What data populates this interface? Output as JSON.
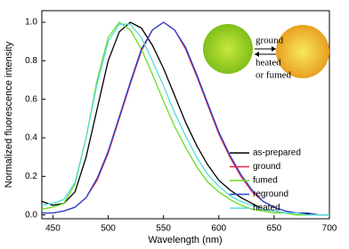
{
  "chart_data": {
    "type": "line",
    "x_label": "Wavelength (nm)",
    "y_label": "Normalized fluorescence intensity",
    "annotations": [
      "ground",
      "heated",
      "or fumed"
    ],
    "x": [
      440,
      450,
      460,
      470,
      480,
      490,
      500,
      510,
      520,
      530,
      540,
      550,
      560,
      570,
      580,
      590,
      600,
      610,
      620,
      630,
      640,
      650,
      660,
      670,
      680,
      690,
      700
    ],
    "series": [
      {
        "name": "as-prepared",
        "color": "#000000",
        "values": [
          0.07,
          0.05,
          0.06,
          0.12,
          0.3,
          0.55,
          0.8,
          0.95,
          1.0,
          0.97,
          0.88,
          0.76,
          0.62,
          0.48,
          0.36,
          0.26,
          0.18,
          0.13,
          0.09,
          0.06,
          0.03,
          0.02,
          0.01,
          0.01,
          0.005,
          0,
          0
        ]
      },
      {
        "name": "ground",
        "color": "#e8294a",
        "values": [
          0.01,
          0.01,
          0.02,
          0.04,
          0.09,
          0.18,
          0.32,
          0.5,
          0.68,
          0.85,
          0.96,
          1.0,
          0.96,
          0.86,
          0.72,
          0.57,
          0.42,
          0.3,
          0.2,
          0.12,
          0.07,
          0.04,
          0.02,
          0.01,
          0.01,
          0,
          0
        ]
      },
      {
        "name": "fumed",
        "color": "#66dd22",
        "values": [
          0.03,
          0.04,
          0.06,
          0.16,
          0.4,
          0.7,
          0.92,
          1.0,
          0.96,
          0.86,
          0.73,
          0.59,
          0.46,
          0.35,
          0.25,
          0.17,
          0.12,
          0.08,
          0.05,
          0.03,
          0.02,
          0.01,
          0.01,
          0,
          0,
          0,
          0
        ]
      },
      {
        "name": "reground",
        "color": "#2244cc",
        "values": [
          0.01,
          0.01,
          0.02,
          0.04,
          0.09,
          0.19,
          0.33,
          0.51,
          0.69,
          0.86,
          0.96,
          1.0,
          0.96,
          0.87,
          0.73,
          0.58,
          0.43,
          0.31,
          0.21,
          0.13,
          0.07,
          0.04,
          0.02,
          0.01,
          0.01,
          0,
          0
        ]
      },
      {
        "name": "heated",
        "color": "#55dddd",
        "values": [
          0.05,
          0.06,
          0.08,
          0.17,
          0.4,
          0.68,
          0.9,
          0.99,
          0.99,
          0.92,
          0.8,
          0.67,
          0.53,
          0.41,
          0.3,
          0.21,
          0.15,
          0.1,
          0.07,
          0.05,
          0.03,
          0.02,
          0.01,
          0.01,
          0,
          0,
          0
        ]
      }
    ],
    "xlim": [
      440,
      700
    ],
    "xticks": [
      450,
      500,
      550,
      600,
      650,
      700
    ],
    "ylim": [
      -0.02,
      1.06
    ],
    "yticks": [
      {
        "value": 0,
        "label": "0.0"
      },
      0.2,
      0.4,
      0.6,
      0.8,
      {
        "value": 1,
        "label": "1.0"
      }
    ],
    "legend": "lower right"
  }
}
